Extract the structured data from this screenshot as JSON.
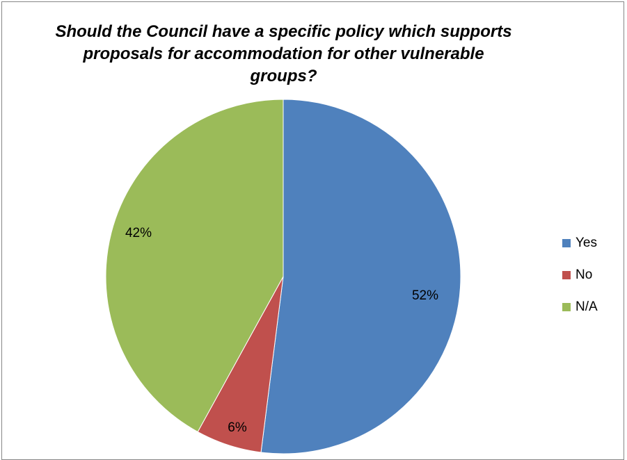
{
  "chart_data": {
    "type": "pie",
    "title_lines": [
      "Should the Council have a specific policy which supports",
      "proposals for accommodation for other vulnerable",
      "groups?"
    ],
    "slices": [
      {
        "name": "Yes",
        "value": 52,
        "label": "52%",
        "color": "#4F81BD"
      },
      {
        "name": "No",
        "value": 6,
        "label": "6%",
        "color": "#C0504D"
      },
      {
        "name": "N/A",
        "value": 42,
        "label": "42%",
        "color": "#9BBB59"
      }
    ],
    "legend_position": "right"
  }
}
